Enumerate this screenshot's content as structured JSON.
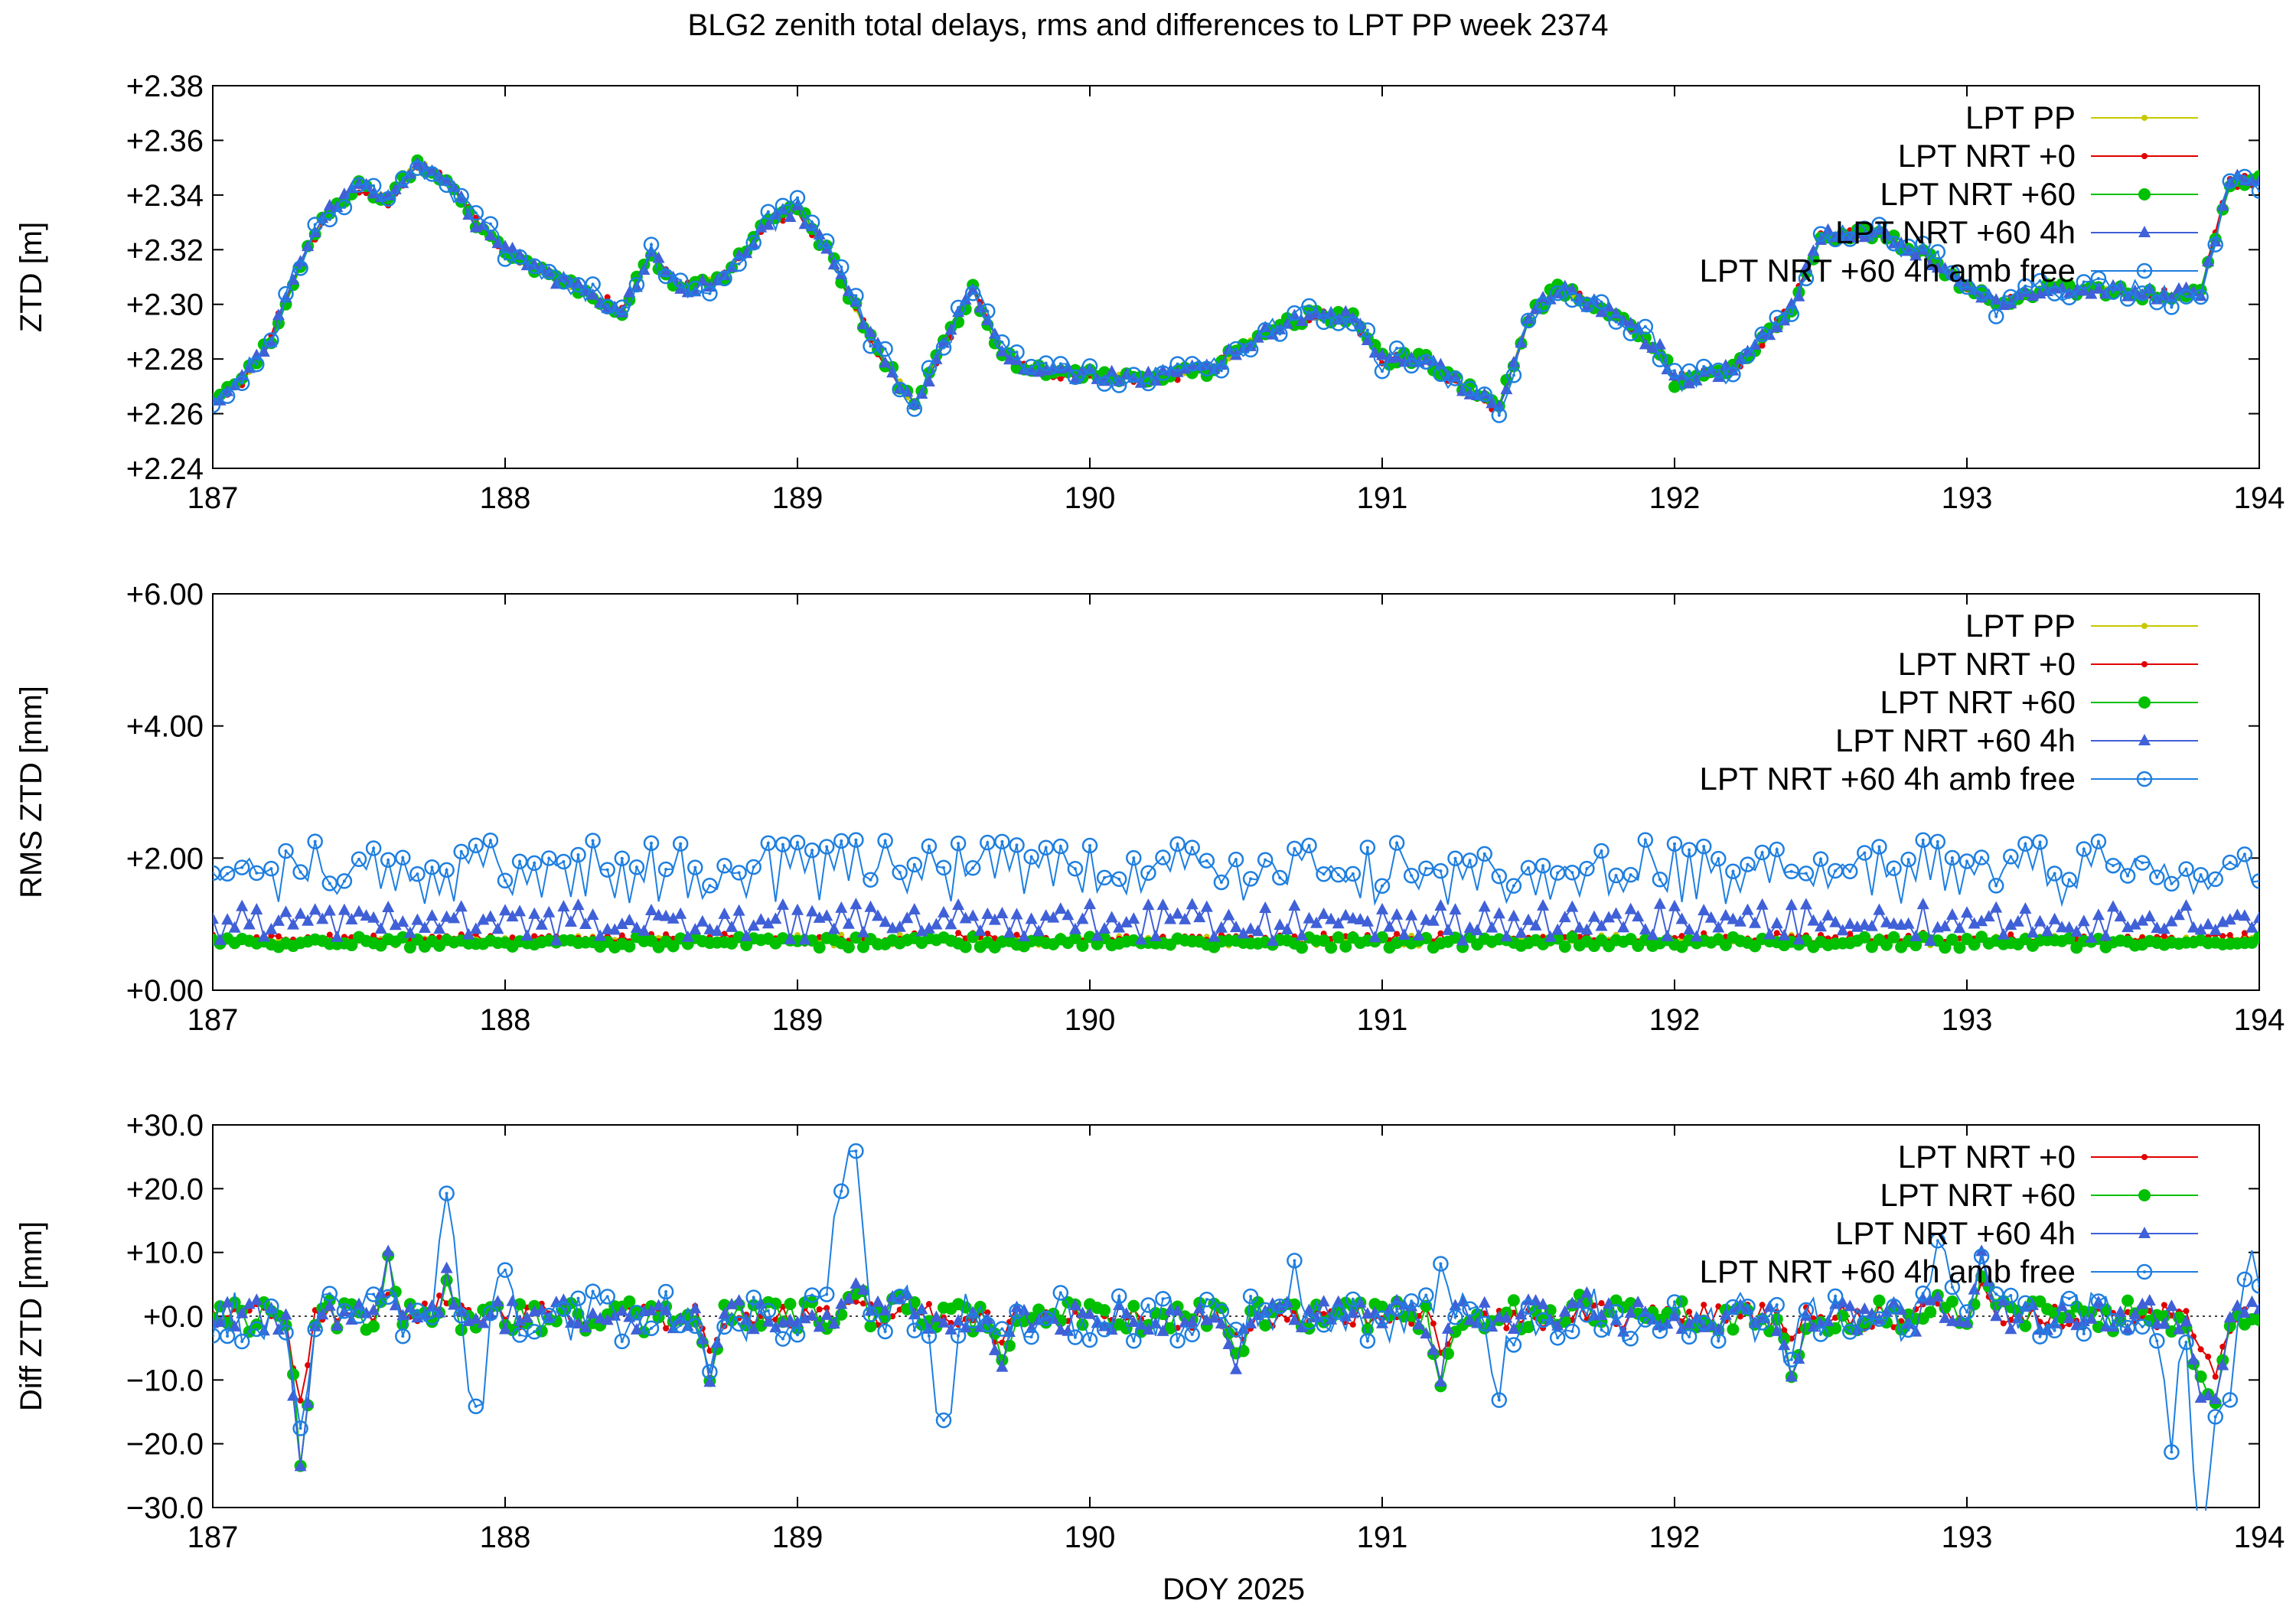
{
  "figure": {
    "title": "BLG2 zenith total delays, rms and differences to LPT PP week 2374",
    "xlabel": "DOY 2025"
  },
  "colors": {
    "LPT PP": "#c8c800",
    "LPT NRT +0": "#e00000",
    "LPT NRT +60": "#00c000",
    "LPT NRT +60 4h": "#4060d8",
    "LPT NRT +60 4h amb free": "#1e7fe0"
  },
  "chart_data": [
    {
      "id": "ztd",
      "type": "line",
      "ylabel": "ZTD [m]",
      "xlim": [
        187,
        194
      ],
      "ylim": [
        2.24,
        2.38
      ],
      "xticks": [
        "187",
        "188",
        "189",
        "190",
        "191",
        "192",
        "193",
        "194"
      ],
      "yticks": [
        "+2.24",
        "+2.26",
        "+2.28",
        "+2.30",
        "+2.32",
        "+2.34",
        "+2.36",
        "+2.38"
      ],
      "legend": [
        "LPT PP",
        "LPT NRT +0",
        "LPT NRT +60",
        "LPT NRT +60 4h",
        "LPT NRT +60 4h amb free"
      ],
      "legend_position": "top-right",
      "anchors": [
        [
          187.0,
          2.265
        ],
        [
          187.1,
          2.272
        ],
        [
          187.2,
          2.288
        ],
        [
          187.3,
          2.315
        ],
        [
          187.4,
          2.335
        ],
        [
          187.5,
          2.343
        ],
        [
          187.6,
          2.338
        ],
        [
          187.7,
          2.352
        ],
        [
          187.8,
          2.345
        ],
        [
          187.9,
          2.33
        ],
        [
          188.0,
          2.32
        ],
        [
          188.2,
          2.308
        ],
        [
          188.4,
          2.298
        ],
        [
          188.5,
          2.318
        ],
        [
          188.6,
          2.305
        ],
        [
          188.75,
          2.31
        ],
        [
          188.9,
          2.33
        ],
        [
          189.0,
          2.335
        ],
        [
          189.1,
          2.32
        ],
        [
          189.25,
          2.288
        ],
        [
          189.4,
          2.262
        ],
        [
          189.5,
          2.285
        ],
        [
          189.6,
          2.305
        ],
        [
          189.7,
          2.282
        ],
        [
          189.8,
          2.276
        ],
        [
          190.0,
          2.274
        ],
        [
          190.2,
          2.273
        ],
        [
          190.4,
          2.276
        ],
        [
          190.6,
          2.29
        ],
        [
          190.75,
          2.296
        ],
        [
          190.9,
          2.295
        ],
        [
          191.0,
          2.28
        ],
        [
          191.15,
          2.28
        ],
        [
          191.25,
          2.272
        ],
        [
          191.4,
          2.262
        ],
        [
          191.5,
          2.295
        ],
        [
          191.6,
          2.306
        ],
        [
          191.8,
          2.296
        ],
        [
          191.95,
          2.283
        ],
        [
          192.0,
          2.272
        ],
        [
          192.2,
          2.276
        ],
        [
          192.4,
          2.298
        ],
        [
          192.5,
          2.325
        ],
        [
          192.7,
          2.326
        ],
        [
          192.9,
          2.315
        ],
        [
          193.0,
          2.306
        ],
        [
          193.1,
          2.3
        ],
        [
          193.3,
          2.306
        ],
        [
          193.5,
          2.305
        ],
        [
          193.7,
          2.303
        ],
        [
          193.8,
          2.305
        ],
        [
          193.9,
          2.345
        ],
        [
          194.0,
          2.345
        ]
      ]
    },
    {
      "id": "rms",
      "type": "line",
      "ylabel": "RMS ZTD [mm]",
      "xlim": [
        187,
        194
      ],
      "ylim": [
        0,
        6
      ],
      "xticks": [
        "187",
        "188",
        "189",
        "190",
        "191",
        "192",
        "193",
        "194"
      ],
      "yticks": [
        "+0.00",
        "+2.00",
        "+4.00",
        "+6.00"
      ],
      "legend": [
        "LPT PP",
        "LPT NRT +0",
        "LPT NRT +60",
        "LPT NRT +60 4h",
        "LPT NRT +60 4h amb free"
      ],
      "legend_position": "top-right",
      "series_levels": {
        "LPT PP": 0.75,
        "LPT NRT +0": 0.78,
        "LPT NRT +60": 0.72,
        "LPT NRT +60 4h": 1.0,
        "LPT NRT +60 4h amb free": 1.75
      }
    },
    {
      "id": "diff",
      "type": "line",
      "ylabel": "Diff ZTD [mm]",
      "xlim": [
        187,
        194
      ],
      "ylim": [
        -30,
        30
      ],
      "xticks": [
        "187",
        "188",
        "189",
        "190",
        "191",
        "192",
        "193",
        "194"
      ],
      "yticks": [
        "−30.0",
        "−20.0",
        "−10.0",
        "+0.0",
        "+10.0",
        "+20.0",
        "+30.0"
      ],
      "legend": [
        "LPT NRT +0",
        "LPT NRT +60",
        "LPT NRT +60 4h",
        "LPT NRT +60 4h amb free"
      ],
      "legend_position": "top-right",
      "zero_line": true,
      "spikes": [
        [
          187.3,
          -23
        ],
        [
          187.6,
          8
        ],
        [
          187.8,
          5
        ],
        [
          188.7,
          -10
        ],
        [
          189.2,
          6
        ],
        [
          189.35,
          4
        ],
        [
          189.7,
          -8
        ],
        [
          190.5,
          -7
        ],
        [
          191.2,
          -9
        ],
        [
          191.7,
          2
        ],
        [
          192.4,
          -9
        ],
        [
          192.9,
          4
        ],
        [
          193.05,
          8
        ],
        [
          193.8,
          -11
        ],
        [
          193.85,
          -13
        ]
      ],
      "amb_free_spikes": [
        [
          187.8,
          16
        ],
        [
          187.9,
          -18
        ],
        [
          188.0,
          6
        ],
        [
          189.15,
          21
        ],
        [
          189.2,
          17
        ],
        [
          189.5,
          -19
        ],
        [
          190.7,
          7
        ],
        [
          191.2,
          11
        ],
        [
          191.4,
          -10
        ],
        [
          192.9,
          12
        ],
        [
          193.7,
          -18
        ],
        [
          193.8,
          -29
        ],
        [
          193.9,
          -17
        ],
        [
          193.96,
          13
        ]
      ]
    }
  ]
}
